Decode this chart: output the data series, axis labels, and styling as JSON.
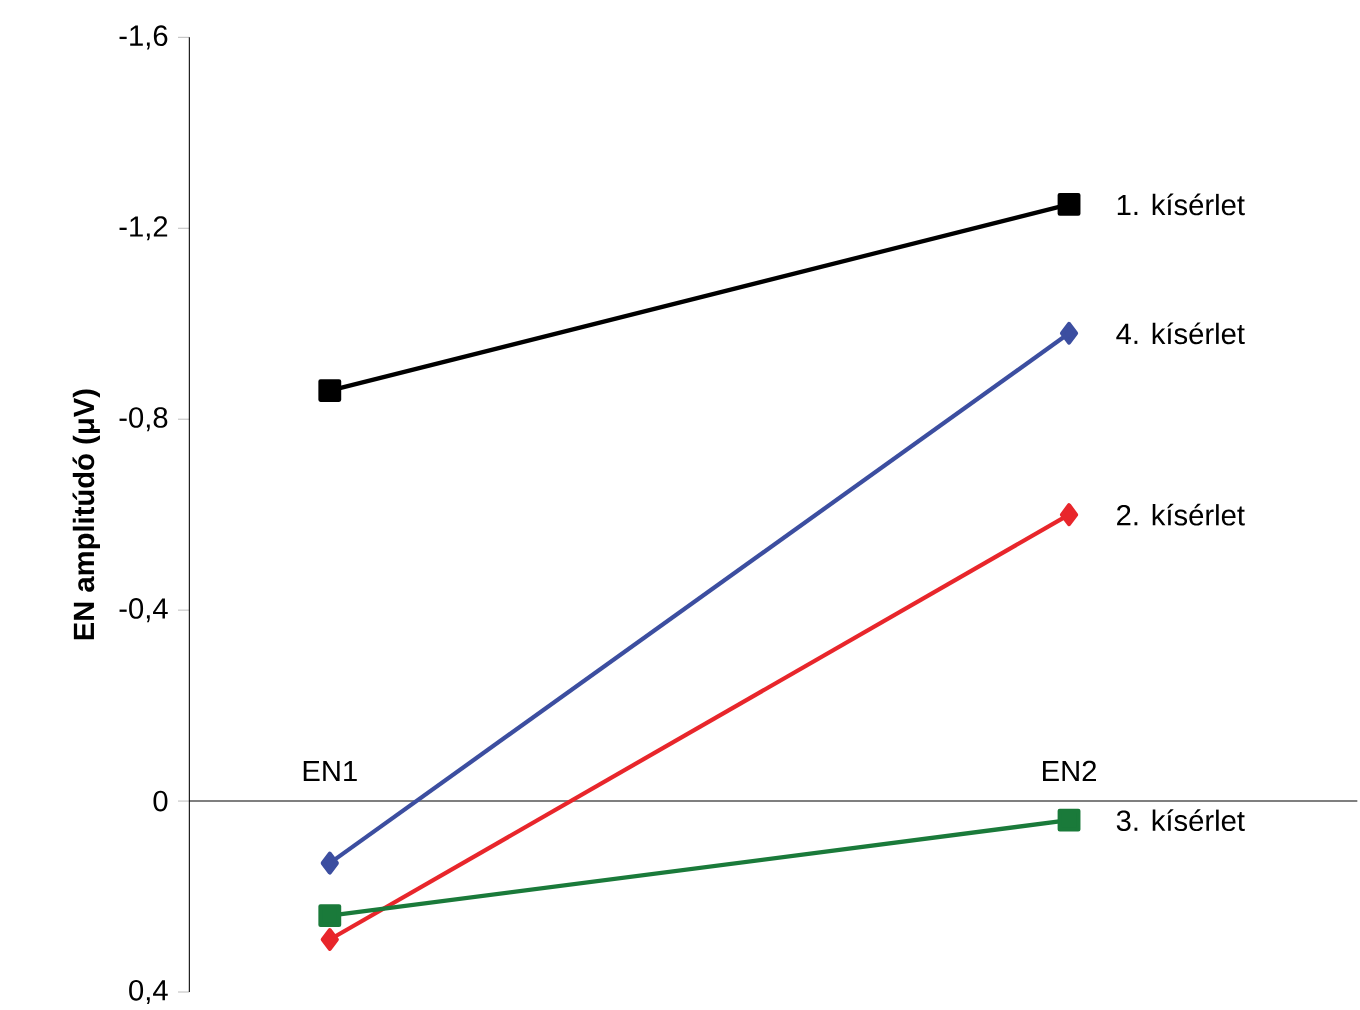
{
  "chart_data": {
    "type": "line",
    "ylabel": "EN amplitúdó (μV)",
    "categories": [
      "EN1",
      "EN2"
    ],
    "series": [
      {
        "name": "1. kísérlet",
        "color": "#000000",
        "marker": "square",
        "values": [
          -0.86,
          -1.25
        ]
      },
      {
        "name": "2. kísérlet",
        "color": "#e8262b",
        "marker": "diamond",
        "values": [
          0.29,
          -0.6
        ]
      },
      {
        "name": "3. kísérlet",
        "color": "#1a7a3a",
        "marker": "square",
        "values": [
          0.24,
          0.04
        ]
      },
      {
        "name": "4. kísérlet",
        "color": "#3c4ea0",
        "marker": "diamond",
        "values": [
          0.13,
          -0.98
        ]
      }
    ],
    "ylim": [
      0.4,
      -1.6
    ],
    "yticks": [
      {
        "value": 0.4,
        "label": "0,4"
      },
      {
        "value": 0,
        "label": "0"
      },
      {
        "value": -0.4,
        "label": "-0,4"
      },
      {
        "value": -0.8,
        "label": "-0,8"
      },
      {
        "value": -1.2,
        "label": "-1,2"
      },
      {
        "value": -1.6,
        "label": "-1,6"
      }
    ],
    "grid": false
  }
}
